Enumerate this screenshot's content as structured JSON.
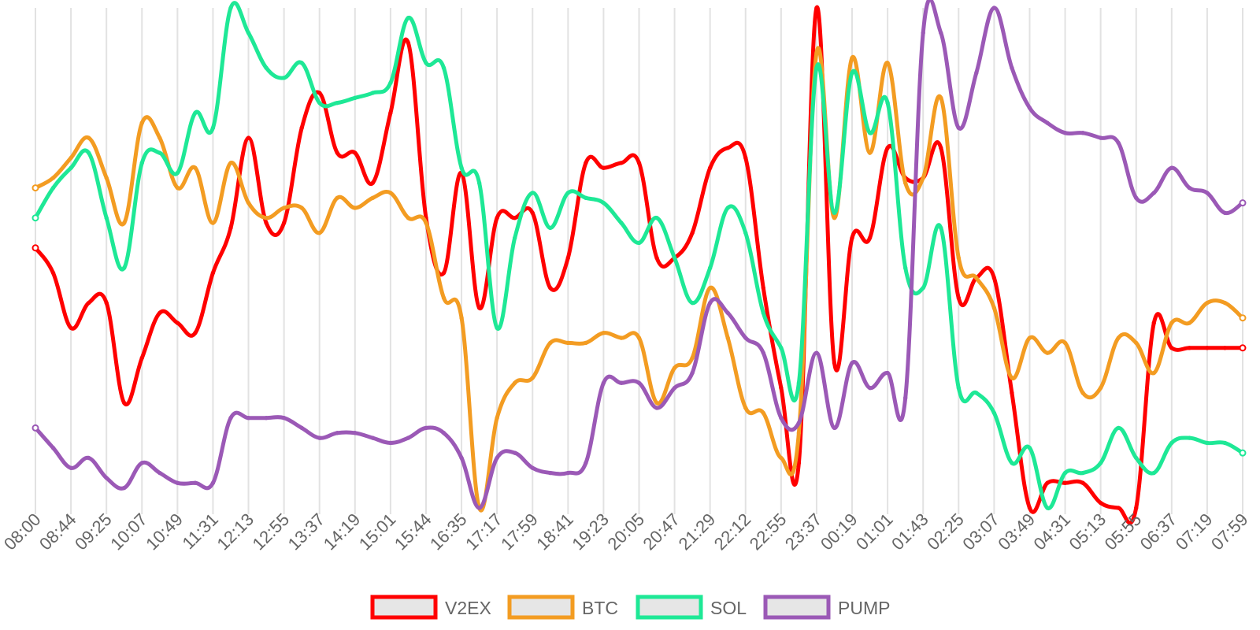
{
  "chart_data": {
    "type": "line",
    "title": "",
    "xlabel": "",
    "ylabel": "",
    "y_axis_labels_shown": false,
    "grid": "vertical",
    "legend_position": "bottom-center",
    "ylim": [
      0,
      100
    ],
    "x": [
      "08:00",
      "08:21",
      "08:44",
      "09:03",
      "09:25",
      "09:46",
      "10:07",
      "10:28",
      "10:49",
      "11:10",
      "11:31",
      "11:52",
      "12:13",
      "12:34",
      "12:55",
      "13:16",
      "13:37",
      "13:58",
      "14:19",
      "14:40",
      "15:01",
      "15:22",
      "15:44",
      "16:05",
      "16:35",
      "16:56",
      "17:17",
      "17:38",
      "17:59",
      "18:20",
      "18:41",
      "19:02",
      "19:23",
      "19:44",
      "20:05",
      "20:26",
      "20:47",
      "21:08",
      "21:29",
      "21:50",
      "22:12",
      "22:33",
      "22:55",
      "23:16",
      "23:37",
      "23:58",
      "00:19",
      "00:40",
      "01:01",
      "01:22",
      "01:43",
      "02:04",
      "02:25",
      "02:46",
      "03:07",
      "03:28",
      "03:49",
      "04:10",
      "04:31",
      "04:52",
      "05:13",
      "05:34",
      "05:55",
      "06:16",
      "06:37",
      "06:58",
      "07:19",
      "07:38",
      "07:59"
    ],
    "tick_labels": [
      "08:00",
      "08:44",
      "09:25",
      "10:07",
      "10:49",
      "11:31",
      "12:13",
      "12:55",
      "13:37",
      "14:19",
      "15:01",
      "15:44",
      "16:35",
      "17:17",
      "17:59",
      "18:41",
      "19:23",
      "20:05",
      "20:47",
      "21:29",
      "22:12",
      "22:55",
      "23:37",
      "00:19",
      "01:01",
      "01:43",
      "02:25",
      "03:07",
      "03:49",
      "04:31",
      "05:13",
      "05:55",
      "06:37",
      "07:19",
      "07:59"
    ],
    "series": [
      {
        "name": "V2EX",
        "color": "#ff0000",
        "values": [
          52,
          47,
          36,
          41,
          41,
          21,
          30,
          39,
          37,
          35,
          47,
          56,
          74,
          57,
          57,
          76,
          83,
          71,
          71,
          65,
          79,
          93,
          58,
          47,
          67,
          40,
          58,
          58,
          59,
          44,
          50,
          69,
          68,
          69,
          69,
          50,
          50,
          55,
          68,
          72,
          70,
          44,
          24,
          9,
          100,
          29,
          54,
          54,
          72,
          66,
          66,
          72,
          42,
          46,
          46,
          23,
          0,
          5,
          5,
          5,
          1,
          0,
          0,
          37,
          32,
          32,
          32,
          32,
          32
        ]
      },
      {
        "name": "BTC",
        "color": "#f39c22",
        "values": [
          64,
          66,
          70,
          74,
          66,
          57,
          77,
          74,
          64,
          68,
          57,
          69,
          61,
          58,
          60,
          60,
          55,
          62,
          60,
          62,
          63,
          58,
          57,
          42,
          38,
          0,
          18,
          25,
          26,
          33,
          33,
          33,
          35,
          34,
          34,
          21,
          28,
          30,
          44,
          34,
          20,
          19,
          10,
          15,
          91,
          58,
          90,
          71,
          89,
          65,
          66,
          82,
          50,
          46,
          40,
          26,
          34,
          31,
          33,
          23,
          24,
          34,
          33,
          27,
          37,
          37,
          41,
          41,
          38
        ]
      },
      {
        "name": "SOL",
        "color": "#1ee896",
        "values": [
          58,
          64,
          68,
          71,
          58,
          48,
          69,
          71,
          67,
          79,
          76,
          100,
          95,
          88,
          86,
          89,
          81,
          81,
          82,
          83,
          85,
          98,
          89,
          88,
          68,
          65,
          36,
          54,
          63,
          56,
          63,
          62,
          61,
          57,
          53,
          58,
          50,
          41,
          48,
          60,
          55,
          39,
          32,
          25,
          88,
          59,
          87,
          75,
          81,
          48,
          44,
          56,
          24,
          23,
          19,
          9,
          12,
          0,
          7,
          7,
          9,
          16,
          10,
          7,
          13,
          14,
          13,
          13,
          11
        ]
      },
      {
        "name": "PUMP",
        "color": "#9b59b6",
        "values": [
          16,
          12,
          8,
          10,
          6,
          4,
          9,
          7,
          5,
          5,
          5,
          18,
          18,
          18,
          18,
          16,
          14,
          15,
          15,
          14,
          13,
          14,
          16,
          15,
          10,
          0,
          10,
          11,
          8,
          7,
          7,
          9,
          25,
          25,
          25,
          20,
          24,
          27,
          41,
          39,
          34,
          31,
          18,
          17,
          31,
          16,
          29,
          24,
          27,
          22,
          95,
          95,
          76,
          87,
          100,
          88,
          80,
          77,
          75,
          75,
          74,
          73,
          62,
          63,
          68,
          64,
          63,
          59,
          61
        ]
      }
    ]
  }
}
